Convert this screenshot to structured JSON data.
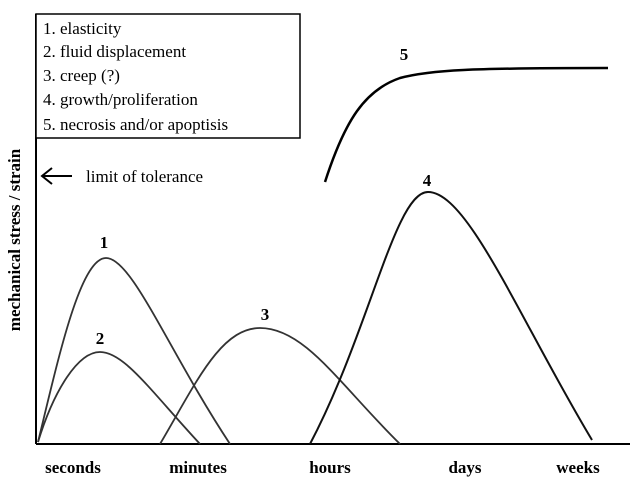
{
  "legend": {
    "items": [
      "1. elasticity",
      "2. fluid displacement",
      "3. creep (?)",
      "4. growth/proliferation",
      "5. necrosis and/or apoptisis"
    ]
  },
  "axes": {
    "ylabel": "mechanical stress / strain",
    "xticks": [
      "seconds",
      "minutes",
      "hours",
      "days",
      "weeks"
    ]
  },
  "annotation": {
    "limit_label": "limit of tolerance"
  },
  "curves": {
    "labels": [
      "1",
      "2",
      "3",
      "4",
      "5"
    ]
  }
}
